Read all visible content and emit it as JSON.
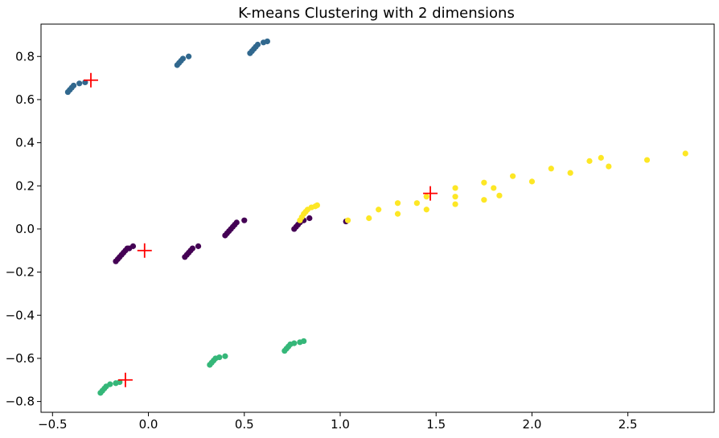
{
  "chart_data": {
    "type": "scatter",
    "title": "K-means Clustering with 2 dimensions",
    "xlabel": "",
    "ylabel": "",
    "xlim": [
      -0.56,
      2.95
    ],
    "ylim": [
      -0.85,
      0.95
    ],
    "grid": false,
    "x_ticks": [
      -0.5,
      0.0,
      0.5,
      1.0,
      1.5,
      2.0,
      2.5
    ],
    "x_tick_labels": [
      "−0.5",
      "0.0",
      "0.5",
      "1.0",
      "1.5",
      "2.0",
      "2.5"
    ],
    "y_ticks": [
      -0.8,
      -0.6,
      -0.4,
      -0.2,
      0.0,
      0.2,
      0.4,
      0.6,
      0.8
    ],
    "y_tick_labels": [
      "−0.8",
      "−0.6",
      "−0.4",
      "−0.2",
      "0.0",
      "0.2",
      "0.4",
      "0.6",
      "0.8"
    ],
    "series": [
      {
        "color": "#440154",
        "points": [
          [
            -0.17,
            -0.15
          ],
          [
            -0.16,
            -0.14
          ],
          [
            -0.15,
            -0.13
          ],
          [
            -0.14,
            -0.12
          ],
          [
            -0.13,
            -0.11
          ],
          [
            -0.12,
            -0.1
          ],
          [
            -0.11,
            -0.09
          ],
          [
            -0.1,
            -0.09
          ],
          [
            -0.08,
            -0.08
          ],
          [
            0.19,
            -0.13
          ],
          [
            0.2,
            -0.12
          ],
          [
            0.21,
            -0.11
          ],
          [
            0.22,
            -0.1
          ],
          [
            0.23,
            -0.09
          ],
          [
            0.26,
            -0.08
          ],
          [
            0.4,
            -0.03
          ],
          [
            0.41,
            -0.02
          ],
          [
            0.42,
            -0.01
          ],
          [
            0.43,
            0.0
          ],
          [
            0.44,
            0.01
          ],
          [
            0.45,
            0.02
          ],
          [
            0.46,
            0.03
          ],
          [
            0.5,
            0.04
          ],
          [
            0.76,
            0.0
          ],
          [
            0.77,
            0.01
          ],
          [
            0.78,
            0.02
          ],
          [
            0.79,
            0.03
          ],
          [
            0.81,
            0.04
          ],
          [
            0.84,
            0.05
          ],
          [
            1.03,
            0.035
          ]
        ]
      },
      {
        "color": "#31688e",
        "points": [
          [
            -0.42,
            0.635
          ],
          [
            -0.41,
            0.645
          ],
          [
            -0.4,
            0.655
          ],
          [
            -0.39,
            0.665
          ],
          [
            -0.36,
            0.675
          ],
          [
            -0.33,
            0.68
          ],
          [
            0.15,
            0.76
          ],
          [
            0.16,
            0.77
          ],
          [
            0.17,
            0.78
          ],
          [
            0.18,
            0.79
          ],
          [
            0.21,
            0.8
          ],
          [
            0.53,
            0.815
          ],
          [
            0.54,
            0.825
          ],
          [
            0.55,
            0.835
          ],
          [
            0.56,
            0.845
          ],
          [
            0.57,
            0.855
          ],
          [
            0.6,
            0.865
          ],
          [
            0.62,
            0.87
          ]
        ]
      },
      {
        "color": "#35b779",
        "points": [
          [
            -0.25,
            -0.76
          ],
          [
            -0.24,
            -0.75
          ],
          [
            -0.23,
            -0.74
          ],
          [
            -0.22,
            -0.73
          ],
          [
            -0.2,
            -0.72
          ],
          [
            -0.17,
            -0.715
          ],
          [
            -0.15,
            -0.71
          ],
          [
            0.32,
            -0.63
          ],
          [
            0.33,
            -0.62
          ],
          [
            0.34,
            -0.61
          ],
          [
            0.35,
            -0.6
          ],
          [
            0.37,
            -0.595
          ],
          [
            0.4,
            -0.59
          ],
          [
            0.71,
            -0.565
          ],
          [
            0.72,
            -0.555
          ],
          [
            0.73,
            -0.545
          ],
          [
            0.74,
            -0.535
          ],
          [
            0.76,
            -0.53
          ],
          [
            0.79,
            -0.525
          ],
          [
            0.81,
            -0.52
          ]
        ]
      },
      {
        "color": "#fde725",
        "points": [
          [
            0.79,
            0.04
          ],
          [
            0.8,
            0.055
          ],
          [
            0.81,
            0.07
          ],
          [
            0.82,
            0.08
          ],
          [
            0.83,
            0.09
          ],
          [
            0.85,
            0.1
          ],
          [
            0.87,
            0.105
          ],
          [
            0.88,
            0.11
          ],
          [
            1.04,
            0.04
          ],
          [
            1.15,
            0.05
          ],
          [
            1.3,
            0.07
          ],
          [
            1.45,
            0.09
          ],
          [
            1.6,
            0.115
          ],
          [
            1.75,
            0.135
          ],
          [
            1.83,
            0.155
          ],
          [
            1.3,
            0.12
          ],
          [
            1.45,
            0.15
          ],
          [
            1.6,
            0.19
          ],
          [
            1.75,
            0.215
          ],
          [
            1.9,
            0.245
          ],
          [
            2.1,
            0.28
          ],
          [
            2.3,
            0.315
          ],
          [
            2.36,
            0.33
          ],
          [
            1.2,
            0.09
          ],
          [
            1.4,
            0.12
          ],
          [
            1.6,
            0.15
          ],
          [
            1.8,
            0.19
          ],
          [
            2.0,
            0.22
          ],
          [
            2.2,
            0.26
          ],
          [
            2.4,
            0.29
          ],
          [
            2.6,
            0.32
          ],
          [
            2.8,
            0.35
          ]
        ]
      }
    ],
    "centroids": {
      "color": "#ff0000",
      "marker": "+",
      "points": [
        [
          -0.3,
          0.69
        ],
        [
          -0.02,
          -0.1
        ],
        [
          -0.12,
          -0.7
        ],
        [
          1.47,
          0.165
        ]
      ]
    }
  }
}
